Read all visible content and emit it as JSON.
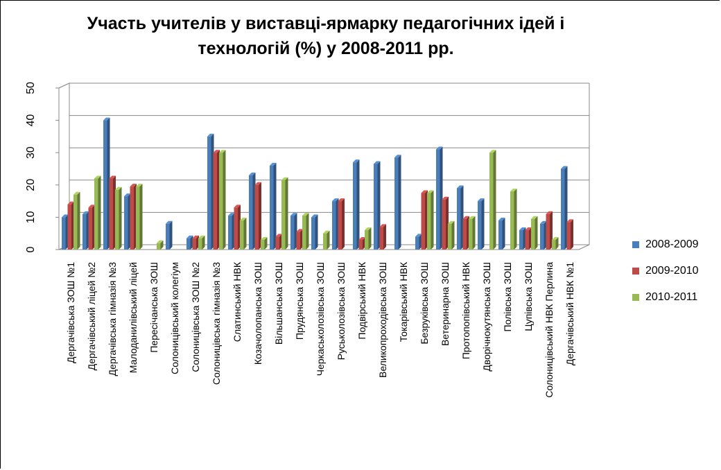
{
  "chart_data": {
    "type": "bar",
    "title_line1": "Участь учителів у виставці-ярмарку  педагогічних ідей і",
    "title_line2": "технологій (%) у 2008-2011 рр.",
    "xlabel": "",
    "ylabel": "",
    "ylim": [
      0,
      50
    ],
    "yticks": [
      "0",
      "10",
      "20",
      "30",
      "40",
      "50"
    ],
    "grid": true,
    "legend_position": "right",
    "categories": [
      "Дергачівська ЗОШ №1",
      "Дергачівський ліцей №2",
      "Дергачівська гімназія №3",
      "Малоданилівський ліцей",
      "Пересічанська ЗОШ",
      "Солоницівський колегіум",
      "Солоницівська ЗОШ №2",
      "Солоницівська гімназія №3",
      "Слатинський НВК",
      "Козачолопанська ЗОШ",
      "Вільшанська ЗОШ",
      "Прудянська ЗОШ",
      "Черкаськолозівська ЗОШ",
      "Руськолозівська ЗОШ",
      "Подвірський НВК",
      "Великопроходівська ЗОШ",
      "Токарівський НВК",
      "Безруківська ЗОШ",
      "Ветеринарна ЗОШ",
      "Протопопівський НВК",
      "Дворічнокутянська ЗОШ",
      "Полівська ЗОШ",
      "Цупівська ЗОШ",
      "Солоницівський НВК Перлина",
      "Дергачівський НВК №1"
    ],
    "series": [
      {
        "name": "2008-2009",
        "color": "#4a7ebb",
        "values": [
          10,
          11,
          40,
          16.5,
          0,
          8,
          3.5,
          35,
          10.5,
          23,
          26,
          10.5,
          10,
          15,
          27,
          26.5,
          28.5,
          4,
          31,
          19,
          15,
          9,
          6,
          8,
          25
        ]
      },
      {
        "name": "2009-2010",
        "color": "#be4b48",
        "values": [
          14,
          13,
          22,
          19.5,
          0,
          0,
          3.5,
          30,
          13,
          20,
          4,
          5.5,
          0,
          15,
          3,
          7,
          0,
          17.5,
          15.5,
          9.5,
          0,
          0,
          6,
          11,
          8.5
        ]
      },
      {
        "name": "2010-2011",
        "color": "#98b954",
        "values": [
          17,
          22,
          18.5,
          19.5,
          2,
          0,
          3.5,
          30,
          9,
          3,
          21.5,
          10.5,
          5,
          0,
          6,
          0,
          0,
          17.5,
          8,
          9.5,
          30,
          18,
          9.5,
          3,
          0
        ]
      }
    ]
  }
}
